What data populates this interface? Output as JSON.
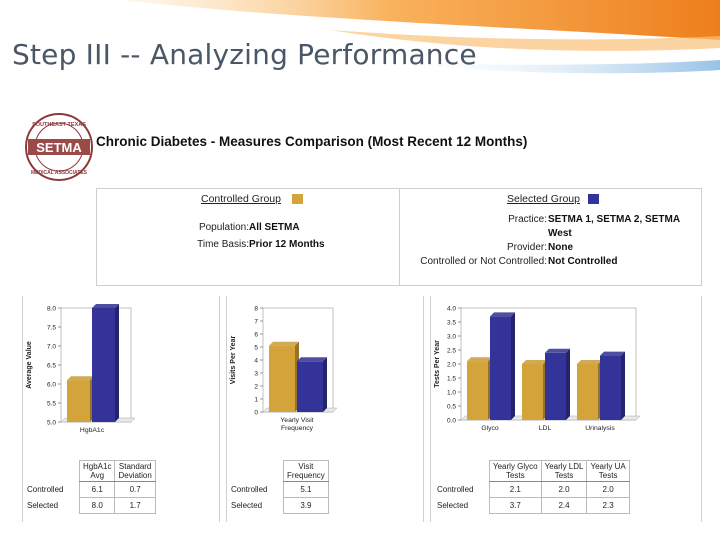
{
  "slide": {
    "title": "Step III -- Analyzing Performance"
  },
  "logo": {
    "text": "SETMA",
    "ring_text_top": "SOUTHEAST TEXAS",
    "ring_text_bottom": "MEDICAL ASSOCIATES"
  },
  "report": {
    "title": "Chronic Diabetes -  Measures Comparison (Most Recent 12 Months)"
  },
  "criteria": {
    "controlled": {
      "heading": "Controlled Group",
      "color": "#d4a33a",
      "rows": [
        {
          "label": "Population:",
          "value": "All SETMA"
        },
        {
          "label": "Time Basis:",
          "value": "Prior 12 Months"
        }
      ]
    },
    "selected": {
      "heading": "Selected Group",
      "color": "#33339a",
      "rows": [
        {
          "label": "Practice:",
          "value": "SETMA 1, SETMA 2, SETMA"
        },
        {
          "label": "",
          "value": "West"
        },
        {
          "label": "Provider:",
          "value": "None"
        },
        {
          "label": "Controlled or Not Controlled:",
          "value": "Not Controlled"
        }
      ]
    }
  },
  "chart_data": [
    {
      "type": "bar",
      "ylabel": "Average Value",
      "ylim": [
        5.0,
        8.0
      ],
      "yticks": [
        "5.0",
        "5.5",
        "6.0",
        "6.5",
        "7.0",
        "7.5",
        "8.0"
      ],
      "categories": [
        "HgbA1c"
      ],
      "series": [
        {
          "name": "Controlled",
          "color": "#d4a33a",
          "values": [
            6.1
          ]
        },
        {
          "name": "Selected",
          "color": "#33339a",
          "values": [
            8.0
          ]
        }
      ]
    },
    {
      "type": "bar",
      "ylabel": "Visits Per Year",
      "ylim": [
        0,
        8
      ],
      "yticks": [
        "0",
        "1",
        "2",
        "3",
        "4",
        "5",
        "6",
        "7",
        "8"
      ],
      "categories": [
        "Yearly Visit\nFrequency"
      ],
      "series": [
        {
          "name": "Controlled",
          "color": "#d4a33a",
          "values": [
            5.1
          ]
        },
        {
          "name": "Selected",
          "color": "#33339a",
          "values": [
            3.9
          ]
        }
      ]
    },
    {
      "type": "bar",
      "ylabel": "Tests Per Year",
      "ylim": [
        0,
        4.0
      ],
      "yticks": [
        "0.0",
        "0.5",
        "1.0",
        "1.5",
        "2.0",
        "2.5",
        "3.0",
        "3.5",
        "4.0"
      ],
      "categories": [
        "Glyco",
        "LDL",
        "Urinalysis"
      ],
      "series": [
        {
          "name": "Controlled",
          "color": "#d4a33a",
          "values": [
            2.1,
            2.0,
            2.0
          ]
        },
        {
          "name": "Selected",
          "color": "#33339a",
          "values": [
            3.7,
            2.4,
            2.3
          ]
        }
      ]
    }
  ],
  "tables": [
    {
      "headers": [
        "HgbA1c\nAvg",
        "Standard\nDeviation"
      ],
      "rows": [
        {
          "label": "Controlled",
          "values": [
            "6.1",
            "0.7"
          ]
        },
        {
          "label": "Selected",
          "values": [
            "8.0",
            "1.7"
          ]
        }
      ]
    },
    {
      "headers": [
        "Visit\nFrequency"
      ],
      "rows": [
        {
          "label": "Controlled",
          "values": [
            "5.1"
          ]
        },
        {
          "label": "Selected",
          "values": [
            "3.9"
          ]
        }
      ]
    },
    {
      "headers": [
        "Yearly Glyco\nTests",
        "Yearly LDL\nTests",
        "Yearly UA\nTests"
      ],
      "rows": [
        {
          "label": "Controlled",
          "values": [
            "2.1",
            "2.0",
            "2.0"
          ]
        },
        {
          "label": "Selected",
          "values": [
            "3.7",
            "2.4",
            "2.3"
          ]
        }
      ]
    }
  ]
}
